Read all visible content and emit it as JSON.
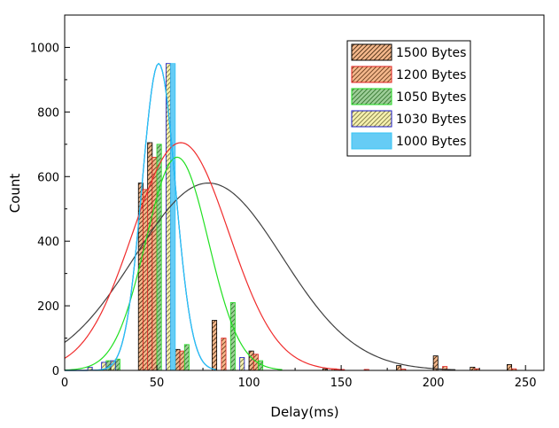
{
  "chart_data": {
    "type": "bar",
    "title": "",
    "xlabel": "Delay(ms)",
    "ylabel": "Count",
    "xlim": [
      0,
      260
    ],
    "ylim": [
      0,
      1100
    ],
    "xticks": [
      0,
      50,
      100,
      150,
      200,
      250
    ],
    "yticks": [
      0,
      200,
      400,
      600,
      800,
      1000
    ],
    "legend_position": "top-right",
    "bin_width": 2.5,
    "series": [
      {
        "name": "1500 Bytes",
        "key": "s1500",
        "fill": "#f6b98d",
        "stroke": "#000000",
        "hatch": "#5a3a1e",
        "curve_color": "#404040",
        "bars": [
          [
            40,
            580
          ],
          [
            45,
            705
          ],
          [
            60,
            65
          ],
          [
            80,
            155
          ],
          [
            100,
            60
          ],
          [
            140,
            5
          ],
          [
            180,
            15
          ],
          [
            200,
            45
          ],
          [
            220,
            10
          ],
          [
            240,
            18
          ]
        ],
        "fit": {
          "mu": 78,
          "sigma": 40,
          "peak": 580
        }
      },
      {
        "name": "1200 Bytes",
        "key": "s1200",
        "fill": "#f6b98d",
        "stroke": "#e02020",
        "hatch": "#7a4a2a",
        "curve_color": "#f02c2c",
        "bars": [
          [
            42.5,
            560
          ],
          [
            47.5,
            660
          ],
          [
            62.5,
            60
          ],
          [
            85,
            100
          ],
          [
            102.5,
            50
          ],
          [
            145,
            5
          ],
          [
            162.5,
            3
          ],
          [
            182.5,
            4
          ],
          [
            205,
            12
          ],
          [
            222.5,
            5
          ],
          [
            242.5,
            5
          ]
        ],
        "fit": {
          "mu": 63,
          "sigma": 26,
          "peak": 705
        }
      },
      {
        "name": "1050 Bytes",
        "key": "s1050",
        "fill": "#9fcf9a",
        "stroke": "#22dd22",
        "hatch": "#3f7f3a",
        "curve_color": "#22e022",
        "bars": [
          [
            22.5,
            30
          ],
          [
            27.5,
            35
          ],
          [
            50,
            700
          ],
          [
            65,
            80
          ],
          [
            90,
            210
          ],
          [
            105,
            30
          ]
        ],
        "fit": {
          "mu": 61,
          "sigma": 17,
          "peak": 660
        }
      },
      {
        "name": "1030 Bytes",
        "key": "s1030",
        "fill": "#f7f2b0",
        "stroke": "#1818c8",
        "hatch": "#8a8550",
        "curve_color": "#2222cc",
        "bars": [
          [
            12.5,
            10
          ],
          [
            20,
            25
          ],
          [
            25,
            30
          ],
          [
            55,
            950
          ],
          [
            95,
            40
          ]
        ],
        "fit": {
          "mu": 51,
          "sigma": 9,
          "peak": 950
        }
      },
      {
        "name": "1000 Bytes",
        "key": "s1000",
        "fill": "#66ccf5",
        "stroke": "#35c5f5",
        "hatch": "",
        "curve_color": "#22c8f5",
        "bars": [
          [
            57.5,
            950
          ]
        ],
        "fit": {
          "mu": 51,
          "sigma": 9,
          "peak": 950
        }
      }
    ]
  }
}
